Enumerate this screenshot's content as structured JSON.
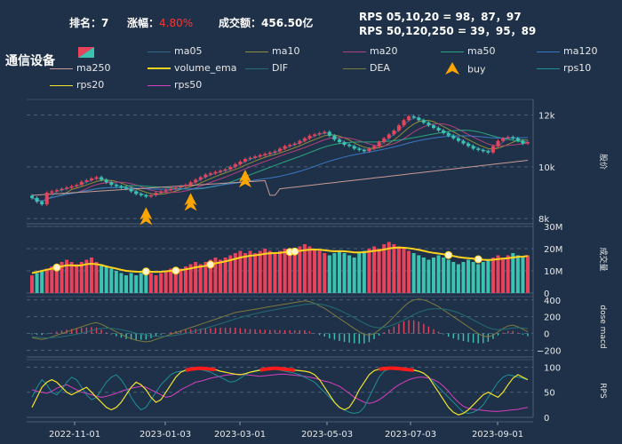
{
  "header": {
    "rank_label": "排名：",
    "rank_value": "7",
    "change_label": "涨幅：",
    "change_value": "4.80%",
    "turnover_label": "成交额：",
    "turnover_value": "456.50亿",
    "rps_line1": "RPS 05,10,20 = 98，87，97",
    "rps_line2": "RPS 50,120,250 = 39，95，89"
  },
  "title": "通信设备",
  "colors": {
    "background": "#1f3148",
    "up": "#e8435a",
    "down": "#3cc3b0",
    "ma05": "#2e6b8a",
    "ma10": "#8f8d3c",
    "ma20": "#b0417a",
    "ma50": "#2aa57f",
    "ma120": "#3b78c2",
    "ma250": "#c79a96",
    "volume_ema": "#ffd21e",
    "DIF": "#226e73",
    "DEA": "#7b7a3f",
    "buy": "#ffa500",
    "rps10": "#1f8f98",
    "rps20": "#f2e32a",
    "rps50": "#d63fbf",
    "rps_hi": "#ff1a1a"
  },
  "legend": [
    {
      "name": "ma05",
      "key": "ma05"
    },
    {
      "name": "ma10",
      "key": "ma10"
    },
    {
      "name": "ma20",
      "key": "ma20"
    },
    {
      "name": "ma50",
      "key": "ma50"
    },
    {
      "name": "ma120",
      "key": "ma120"
    },
    {
      "name": "ma250",
      "key": "ma250"
    },
    {
      "name": "volume_ema",
      "key": "volume_ema"
    },
    {
      "name": "DIF",
      "key": "DIF"
    },
    {
      "name": "DEA",
      "key": "DEA"
    },
    {
      "name": "buy",
      "key": "buy"
    },
    {
      "name": "rps10",
      "key": "rps10"
    },
    {
      "name": "rps20",
      "key": "rps20"
    },
    {
      "name": "rps50",
      "key": "rps50"
    }
  ],
  "chart_data": {
    "type": "candlestick",
    "x_ticks": [
      "2022-11-01",
      "2023-01-03",
      "2023-03-01",
      "2023-05-03",
      "2023-07-03",
      "2023-09-01"
    ],
    "price_panel": {
      "ylabel": "股价",
      "yticks": [
        "12k",
        "10k",
        "8k"
      ],
      "ylim": [
        7800,
        12600
      ]
    },
    "volume_panel": {
      "ylabel": "成交量",
      "yticks": [
        "30M",
        "20M",
        "10M",
        "0"
      ],
      "ylim": [
        0,
        30
      ]
    },
    "macd_panel": {
      "ylabel": "dose macd",
      "yticks": [
        "400",
        "200",
        "0",
        "−200"
      ],
      "ylim": [
        -280,
        440
      ]
    },
    "rps_panel": {
      "ylabel": "RPS",
      "yticks": [
        "100",
        "50",
        "0"
      ],
      "ylim": [
        0,
        115
      ]
    },
    "price_close": [
      8800,
      8650,
      8550,
      9000,
      9050,
      9100,
      9150,
      9200,
      9250,
      9300,
      9420,
      9480,
      9550,
      9600,
      9500,
      9400,
      9300,
      9250,
      9200,
      9150,
      9050,
      8950,
      8900,
      8850,
      8900,
      9000,
      9050,
      9100,
      9150,
      9200,
      9250,
      9300,
      9400,
      9500,
      9600,
      9700,
      9750,
      9800,
      9850,
      9900,
      10000,
      10100,
      10200,
      10300,
      10350,
      10400,
      10450,
      10500,
      10550,
      10600,
      10700,
      10800,
      10850,
      10900,
      11000,
      11100,
      11200,
      11250,
      11300,
      11350,
      11200,
      11050,
      10950,
      10850,
      10800,
      10700,
      10650,
      10600,
      10700,
      10800,
      10950,
      11100,
      11250,
      11400,
      11600,
      11800,
      11950,
      11900,
      11800,
      11700,
      11600,
      11500,
      11400,
      11300,
      11200,
      11100,
      11000,
      10900,
      10800,
      10700,
      10650,
      10600,
      10550,
      10800,
      11000,
      11100,
      11150,
      11100,
      11000,
      10900,
      10950
    ],
    "volume": [
      8,
      9,
      10,
      11,
      12,
      13,
      14,
      15,
      14,
      13,
      14,
      15,
      16,
      14,
      13,
      12,
      11,
      10,
      9,
      8,
      9,
      8,
      9,
      10,
      9,
      8,
      9,
      10,
      11,
      10,
      11,
      12,
      13,
      14,
      13,
      14,
      15,
      16,
      15,
      16,
      17,
      18,
      19,
      18,
      19,
      18,
      19,
      20,
      19,
      18,
      19,
      20,
      19,
      20,
      21,
      22,
      21,
      20,
      19,
      18,
      17,
      18,
      19,
      18,
      17,
      16,
      18,
      19,
      20,
      21,
      20,
      22,
      23,
      22,
      21,
      20,
      19,
      18,
      17,
      16,
      15,
      16,
      17,
      16,
      15,
      14,
      13,
      14,
      15,
      14,
      13,
      14,
      15,
      16,
      17,
      16,
      17,
      18,
      17,
      16,
      17
    ],
    "volume_ema": [
      9,
      9.5,
      10,
      10.5,
      11,
      11.5,
      12,
      12.5,
      12.5,
      12.3,
      12.5,
      13,
      13.2,
      13,
      12.6,
      12,
      11.5,
      11,
      10.5,
      10,
      9.8,
      9.6,
      9.6,
      9.7,
      9.6,
      9.5,
      9.6,
      9.8,
      10,
      10.1,
      10.3,
      10.7,
      11.1,
      11.6,
      11.9,
      12.3,
      12.8,
      13.4,
      13.8,
      14.3,
      14.8,
      15.4,
      16,
      16.4,
      16.8,
      17,
      17.3,
      17.7,
      17.9,
      18,
      18.1,
      18.4,
      18.5,
      18.7,
      19,
      19.3,
      19.5,
      19.6,
      19.5,
      19.3,
      19,
      18.8,
      18.9,
      18.8,
      18.6,
      18.3,
      18.3,
      18.4,
      18.7,
      19,
      19.2,
      19.6,
      20.1,
      20.4,
      20.5,
      20.4,
      20.2,
      19.9,
      19.5,
      19,
      18.5,
      18.1,
      17.8,
      17.5,
      17.1,
      16.7,
      16.2,
      15.9,
      15.7,
      15.5,
      15.2,
      15,
      14.9,
      15,
      15.3,
      15.5,
      15.7,
      16,
      16.3,
      16.4,
      16.7
    ],
    "macd_dif": [
      -50,
      -60,
      -70,
      -60,
      -40,
      -20,
      0,
      20,
      40,
      60,
      80,
      100,
      120,
      130,
      110,
      80,
      50,
      20,
      -10,
      -40,
      -60,
      -80,
      -90,
      -100,
      -90,
      -70,
      -50,
      -30,
      -10,
      10,
      30,
      50,
      70,
      90,
      110,
      130,
      150,
      170,
      190,
      210,
      230,
      250,
      260,
      270,
      280,
      290,
      300,
      310,
      320,
      330,
      340,
      350,
      360,
      370,
      380,
      390,
      380,
      360,
      330,
      300,
      260,
      220,
      180,
      140,
      100,
      60,
      20,
      -10,
      -20,
      0,
      40,
      90,
      140,
      200,
      260,
      320,
      370,
      400,
      410,
      400,
      380,
      350,
      320,
      280,
      240,
      200,
      160,
      120,
      80,
      40,
      0,
      -30,
      -40,
      -20,
      20,
      60,
      90,
      100,
      80,
      50,
      20
    ],
    "macd_dea": [
      -40,
      -45,
      -50,
      -52,
      -50,
      -45,
      -38,
      -30,
      -20,
      -8,
      5,
      20,
      35,
      50,
      60,
      64,
      62,
      56,
      45,
      32,
      18,
      4,
      -8,
      -20,
      -28,
      -32,
      -34,
      -33,
      -29,
      -21,
      -11,
      1,
      15,
      30,
      46,
      63,
      80,
      98,
      116,
      135,
      154,
      173,
      191,
      207,
      222,
      236,
      249,
      261,
      273,
      284,
      295,
      306,
      317,
      327,
      337,
      347,
      353,
      354,
      350,
      340,
      324,
      303,
      278,
      251,
      221,
      189,
      155,
      122,
      94,
      75,
      68,
      73,
      87,
      107,
      132,
      161,
      193,
      225,
      252,
      273,
      287,
      294,
      295,
      292,
      282,
      266,
      245,
      220,
      192,
      162,
      130,
      98,
      70,
      52,
      46,
      49,
      57,
      66,
      69,
      65,
      56
    ],
    "macd_hist": [
      -20,
      -30,
      -40,
      -16,
      20,
      50,
      76,
      100,
      120,
      136,
      150,
      160,
      170,
      160,
      100,
      32,
      -24,
      -72,
      -110,
      -144,
      -156,
      -168,
      -164,
      -160,
      -124,
      -76,
      -32,
      6,
      38,
      62,
      82,
      98,
      110,
      120,
      128,
      134,
      140,
      144,
      148,
      150,
      152,
      154,
      138,
      126,
      116,
      108,
      102,
      98,
      94,
      92,
      90,
      88,
      86,
      86,
      86,
      86,
      54,
      12,
      -40,
      -80,
      -128,
      -166,
      -196,
      -222,
      -242,
      -258,
      -270,
      -264,
      -228,
      -150,
      -56,
      34,
      106,
      186,
      256,
      318,
      354,
      350,
      316,
      254,
      186,
      112,
      50,
      -24,
      -84,
      -132,
      -170,
      -200,
      -224,
      -244,
      -260,
      -256,
      -220,
      -144,
      -52,
      22,
      66,
      68,
      22,
      -30,
      -72
    ],
    "rps10": [
      40,
      60,
      75,
      65,
      50,
      45,
      55,
      70,
      80,
      75,
      60,
      45,
      35,
      40,
      55,
      70,
      80,
      85,
      75,
      60,
      40,
      25,
      15,
      20,
      35,
      50,
      65,
      75,
      85,
      90,
      92,
      94,
      96,
      97,
      95,
      93,
      90,
      85,
      80,
      75,
      70,
      72,
      78,
      85,
      90,
      93,
      95,
      96,
      97,
      96,
      94,
      92,
      90,
      88,
      85,
      80,
      75,
      70,
      60,
      50,
      40,
      30,
      20,
      15,
      10,
      8,
      10,
      20,
      40,
      60,
      80,
      92,
      96,
      97,
      98,
      97,
      96,
      95,
      92,
      88,
      80,
      70,
      60,
      50,
      40,
      30,
      20,
      10,
      8,
      10,
      15,
      25,
      40,
      55,
      70,
      80,
      85,
      83,
      80,
      78,
      75
    ],
    "rps20": [
      20,
      40,
      60,
      70,
      75,
      70,
      60,
      50,
      45,
      50,
      55,
      60,
      50,
      40,
      30,
      20,
      15,
      20,
      30,
      45,
      60,
      70,
      65,
      55,
      40,
      30,
      35,
      50,
      65,
      80,
      90,
      94,
      96,
      97,
      98,
      97,
      96,
      95,
      92,
      90,
      88,
      86,
      85,
      87,
      90,
      92,
      94,
      96,
      97,
      98,
      97,
      96,
      95,
      94,
      93,
      92,
      90,
      85,
      75,
      60,
      45,
      30,
      20,
      15,
      20,
      35,
      55,
      70,
      85,
      93,
      96,
      97,
      98,
      98,
      97,
      96,
      95,
      94,
      92,
      88,
      80,
      65,
      50,
      35,
      20,
      10,
      5,
      8,
      15,
      25,
      35,
      45,
      50,
      45,
      40,
      50,
      65,
      78,
      85,
      80,
      75
    ],
    "rps50": [
      55,
      52,
      50,
      48,
      52,
      58,
      62,
      65,
      60,
      55,
      50,
      48,
      45,
      42,
      40,
      42,
      45,
      48,
      52,
      55,
      58,
      60,
      62,
      60,
      55,
      50,
      45,
      40,
      42,
      48,
      55,
      60,
      65,
      70,
      72,
      75,
      78,
      80,
      82,
      84,
      85,
      86,
      86,
      85,
      84,
      83,
      82,
      83,
      84,
      85,
      86,
      86,
      85,
      84,
      83,
      82,
      80,
      78,
      75,
      72,
      70,
      66,
      62,
      55,
      48,
      40,
      35,
      30,
      28,
      30,
      35,
      42,
      50,
      58,
      65,
      70,
      75,
      78,
      80,
      80,
      78,
      75,
      70,
      62,
      52,
      40,
      30,
      22,
      18,
      16,
      15,
      14,
      13,
      12,
      12,
      13,
      14,
      15,
      16,
      18,
      20
    ],
    "buy_markers": [
      23,
      32,
      43
    ],
    "volume_ema_markers": [
      5,
      23,
      29,
      36,
      52,
      53,
      84,
      90
    ]
  }
}
